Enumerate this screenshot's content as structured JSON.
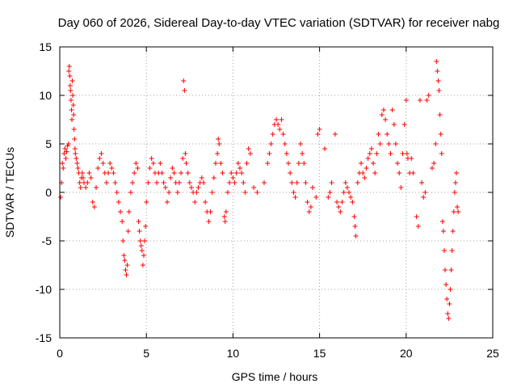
{
  "chart_data": {
    "type": "scatter",
    "title": "Day 060 of 2026, Sidereal Day-to-day VTEC variation (SDTVAR) for receiver nabg",
    "xlabel": "GPS time / hours",
    "ylabel": "SDTVAR / TECUs",
    "xlim": [
      0,
      25
    ],
    "ylim": [
      -15,
      15
    ],
    "xticks": [
      0,
      5,
      10,
      15,
      20,
      25
    ],
    "yticks": [
      -15,
      -10,
      -5,
      0,
      5,
      10,
      15
    ],
    "grid": true,
    "marker": "+",
    "color": "#ff0000",
    "series": [
      {
        "name": "SDTVAR",
        "points": [
          [
            0.05,
            -0.5
          ],
          [
            0.1,
            1.0
          ],
          [
            0.15,
            3.0
          ],
          [
            0.2,
            2.5
          ],
          [
            0.25,
            4.0
          ],
          [
            0.3,
            4.5
          ],
          [
            0.35,
            3.5
          ],
          [
            0.4,
            4.2
          ],
          [
            0.45,
            4.8
          ],
          [
            0.5,
            5.0
          ],
          [
            0.52,
            12.5
          ],
          [
            0.55,
            13.0
          ],
          [
            0.58,
            12.0
          ],
          [
            0.6,
            11.0
          ],
          [
            0.62,
            10.5
          ],
          [
            0.65,
            9.5
          ],
          [
            0.68,
            8.5
          ],
          [
            0.7,
            7.5
          ],
          [
            0.72,
            11.5
          ],
          [
            0.75,
            10.0
          ],
          [
            0.78,
            9.0
          ],
          [
            0.8,
            8.0
          ],
          [
            0.82,
            6.5
          ],
          [
            0.85,
            5.5
          ],
          [
            0.88,
            4.5
          ],
          [
            0.9,
            4.0
          ],
          [
            0.95,
            3.5
          ],
          [
            1.0,
            3.0
          ],
          [
            1.05,
            2.5
          ],
          [
            1.1,
            2.0
          ],
          [
            1.15,
            1.0
          ],
          [
            1.2,
            0.5
          ],
          [
            1.25,
            1.5
          ],
          [
            1.3,
            2.0
          ],
          [
            1.35,
            1.5
          ],
          [
            1.4,
            1.0
          ],
          [
            1.5,
            0.5
          ],
          [
            1.6,
            1.0
          ],
          [
            1.7,
            2.0
          ],
          [
            1.8,
            1.5
          ],
          [
            1.9,
            -1.0
          ],
          [
            2.0,
            -1.5
          ],
          [
            2.1,
            0.5
          ],
          [
            2.2,
            2.5
          ],
          [
            2.3,
            3.5
          ],
          [
            2.4,
            4.0
          ],
          [
            2.5,
            3.0
          ],
          [
            2.6,
            2.0
          ],
          [
            2.7,
            1.0
          ],
          [
            2.8,
            2.0
          ],
          [
            2.9,
            3.0
          ],
          [
            3.0,
            2.5
          ],
          [
            3.1,
            2.0
          ],
          [
            3.2,
            1.0
          ],
          [
            3.3,
            0.0
          ],
          [
            3.4,
            -1.0
          ],
          [
            3.5,
            -2.0
          ],
          [
            3.6,
            -3.0
          ],
          [
            3.65,
            -5.0
          ],
          [
            3.7,
            -6.5
          ],
          [
            3.75,
            -7.0
          ],
          [
            3.8,
            -8.0
          ],
          [
            3.85,
            -8.5
          ],
          [
            3.9,
            -7.5
          ],
          [
            3.95,
            -4.0
          ],
          [
            4.0,
            -2.0
          ],
          [
            4.1,
            0.0
          ],
          [
            4.2,
            1.0
          ],
          [
            4.3,
            2.0
          ],
          [
            4.4,
            3.0
          ],
          [
            4.5,
            2.5
          ],
          [
            4.55,
            -3.0
          ],
          [
            4.6,
            -4.0
          ],
          [
            4.65,
            -5.0
          ],
          [
            4.7,
            -5.5
          ],
          [
            4.75,
            -6.0
          ],
          [
            4.8,
            -7.5
          ],
          [
            4.85,
            -6.5
          ],
          [
            4.9,
            -5.0
          ],
          [
            4.95,
            -3.5
          ],
          [
            5.0,
            -1.0
          ],
          [
            5.1,
            1.0
          ],
          [
            5.2,
            2.5
          ],
          [
            5.3,
            3.5
          ],
          [
            5.4,
            3.0
          ],
          [
            5.5,
            2.0
          ],
          [
            5.6,
            1.0
          ],
          [
            5.7,
            2.0
          ],
          [
            5.8,
            3.0
          ],
          [
            5.9,
            2.0
          ],
          [
            6.0,
            1.0
          ],
          [
            6.1,
            0.5
          ],
          [
            6.2,
            -1.0
          ],
          [
            6.3,
            0.0
          ],
          [
            6.4,
            1.5
          ],
          [
            6.5,
            2.5
          ],
          [
            6.6,
            2.0
          ],
          [
            6.7,
            1.0
          ],
          [
            6.8,
            0.0
          ],
          [
            6.9,
            1.0
          ],
          [
            7.0,
            2.0
          ],
          [
            7.1,
            3.5
          ],
          [
            7.15,
            11.5
          ],
          [
            7.2,
            10.5
          ],
          [
            7.25,
            4.0
          ],
          [
            7.3,
            3.0
          ],
          [
            7.4,
            2.0
          ],
          [
            7.5,
            1.0
          ],
          [
            7.6,
            0.5
          ],
          [
            7.7,
            0.0
          ],
          [
            7.8,
            -1.0
          ],
          [
            7.9,
            0.0
          ],
          [
            8.0,
            0.5
          ],
          [
            8.1,
            1.0
          ],
          [
            8.2,
            1.5
          ],
          [
            8.3,
            1.0
          ],
          [
            8.4,
            -1.0
          ],
          [
            8.5,
            -2.0
          ],
          [
            8.6,
            -3.0
          ],
          [
            8.7,
            -2.0
          ],
          [
            8.8,
            0.0
          ],
          [
            8.9,
            1.5
          ],
          [
            9.0,
            3.0
          ],
          [
            9.1,
            4.0
          ],
          [
            9.15,
            5.5
          ],
          [
            9.2,
            5.0
          ],
          [
            9.3,
            3.0
          ],
          [
            9.4,
            2.0
          ],
          [
            9.5,
            -2.5
          ],
          [
            9.55,
            -3.0
          ],
          [
            9.6,
            -2.0
          ],
          [
            9.7,
            0.0
          ],
          [
            9.8,
            1.0
          ],
          [
            9.9,
            2.0
          ],
          [
            10.0,
            1.5
          ],
          [
            10.1,
            1.0
          ],
          [
            10.2,
            2.0
          ],
          [
            10.3,
            3.0
          ],
          [
            10.4,
            2.5
          ],
          [
            10.5,
            2.0
          ],
          [
            10.6,
            1.0
          ],
          [
            10.7,
            0.0
          ],
          [
            10.8,
            3.0
          ],
          [
            10.9,
            4.5
          ],
          [
            11.0,
            4.0
          ],
          [
            11.2,
            0.5
          ],
          [
            11.4,
            0.0
          ],
          [
            11.8,
            1.0
          ],
          [
            12.0,
            3.0
          ],
          [
            12.1,
            4.0
          ],
          [
            12.2,
            5.0
          ],
          [
            12.3,
            6.0
          ],
          [
            12.4,
            7.0
          ],
          [
            12.5,
            7.5
          ],
          [
            12.6,
            7.0
          ],
          [
            12.7,
            6.5
          ],
          [
            12.8,
            7.5
          ],
          [
            12.9,
            6.0
          ],
          [
            13.0,
            5.0
          ],
          [
            13.1,
            4.0
          ],
          [
            13.2,
            3.0
          ],
          [
            13.3,
            2.0
          ],
          [
            13.4,
            1.0
          ],
          [
            13.5,
            0.0
          ],
          [
            13.6,
            -0.5
          ],
          [
            13.7,
            1.0
          ],
          [
            13.8,
            3.0
          ],
          [
            13.9,
            5.0
          ],
          [
            14.0,
            4.0
          ],
          [
            14.1,
            3.0
          ],
          [
            14.2,
            1.0
          ],
          [
            14.3,
            -1.0
          ],
          [
            14.4,
            -2.0
          ],
          [
            14.5,
            -1.5
          ],
          [
            14.6,
            0.5
          ],
          [
            14.8,
            -0.5
          ],
          [
            14.9,
            6.0
          ],
          [
            15.0,
            6.5
          ],
          [
            15.3,
            4.5
          ],
          [
            15.5,
            -0.5
          ],
          [
            15.6,
            0.0
          ],
          [
            15.7,
            1.0
          ],
          [
            15.9,
            6.0
          ],
          [
            16.0,
            -1.0
          ],
          [
            16.1,
            -1.5
          ],
          [
            16.2,
            -2.0
          ],
          [
            16.3,
            -1.0
          ],
          [
            16.4,
            0.0
          ],
          [
            16.5,
            1.0
          ],
          [
            16.6,
            0.5
          ],
          [
            16.7,
            0.0
          ],
          [
            16.8,
            -0.5
          ],
          [
            16.9,
            -1.0
          ],
          [
            17.0,
            -2.5
          ],
          [
            17.05,
            -3.5
          ],
          [
            17.1,
            -4.5
          ],
          [
            17.2,
            1.0
          ],
          [
            17.3,
            2.0
          ],
          [
            17.4,
            3.0
          ],
          [
            17.5,
            2.0
          ],
          [
            17.6,
            1.5
          ],
          [
            17.7,
            2.5
          ],
          [
            17.8,
            3.5
          ],
          [
            17.9,
            4.0
          ],
          [
            18.0,
            4.5
          ],
          [
            18.1,
            3.0
          ],
          [
            18.2,
            2.0
          ],
          [
            18.3,
            4.0
          ],
          [
            18.4,
            6.0
          ],
          [
            18.5,
            5.0
          ],
          [
            18.6,
            8.0
          ],
          [
            18.7,
            8.5
          ],
          [
            18.8,
            7.5
          ],
          [
            18.9,
            6.0
          ],
          [
            19.0,
            5.0
          ],
          [
            19.1,
            4.0
          ],
          [
            19.2,
            8.5
          ],
          [
            19.3,
            7.0
          ],
          [
            19.4,
            5.0
          ],
          [
            19.5,
            3.0
          ],
          [
            19.6,
            2.0
          ],
          [
            19.7,
            0.5
          ],
          [
            19.8,
            4.0
          ],
          [
            19.9,
            7.0
          ],
          [
            20.0,
            9.5
          ],
          [
            20.05,
            4.0
          ],
          [
            20.1,
            3.5
          ],
          [
            20.2,
            2.0
          ],
          [
            20.3,
            3.5
          ],
          [
            20.4,
            2.0
          ],
          [
            20.6,
            -2.5
          ],
          [
            20.7,
            -3.5
          ],
          [
            20.8,
            9.5
          ],
          [
            20.9,
            1.0
          ],
          [
            21.0,
            -0.5
          ],
          [
            21.1,
            0.0
          ],
          [
            21.2,
            9.5
          ],
          [
            21.3,
            10.0
          ],
          [
            21.5,
            2.5
          ],
          [
            21.6,
            3.0
          ],
          [
            21.7,
            5.0
          ],
          [
            21.75,
            13.5
          ],
          [
            21.8,
            12.5
          ],
          [
            21.85,
            11.5
          ],
          [
            21.9,
            10.5
          ],
          [
            21.95,
            8.0
          ],
          [
            22.0,
            6.0
          ],
          [
            22.05,
            4.0
          ],
          [
            22.1,
            -3.0
          ],
          [
            22.15,
            -4.0
          ],
          [
            22.2,
            -6.0
          ],
          [
            22.25,
            -8.0
          ],
          [
            22.3,
            -9.5
          ],
          [
            22.35,
            -11.0
          ],
          [
            22.4,
            -12.5
          ],
          [
            22.45,
            -13.0
          ],
          [
            22.5,
            -11.5
          ],
          [
            22.55,
            -10.0
          ],
          [
            22.6,
            -8.0
          ],
          [
            22.65,
            -6.0
          ],
          [
            22.7,
            -4.0
          ],
          [
            22.75,
            -2.0
          ],
          [
            22.8,
            0.0
          ],
          [
            22.85,
            1.0
          ],
          [
            22.9,
            2.0
          ],
          [
            22.95,
            -1.5
          ],
          [
            23.0,
            -2.0
          ]
        ]
      }
    ]
  }
}
